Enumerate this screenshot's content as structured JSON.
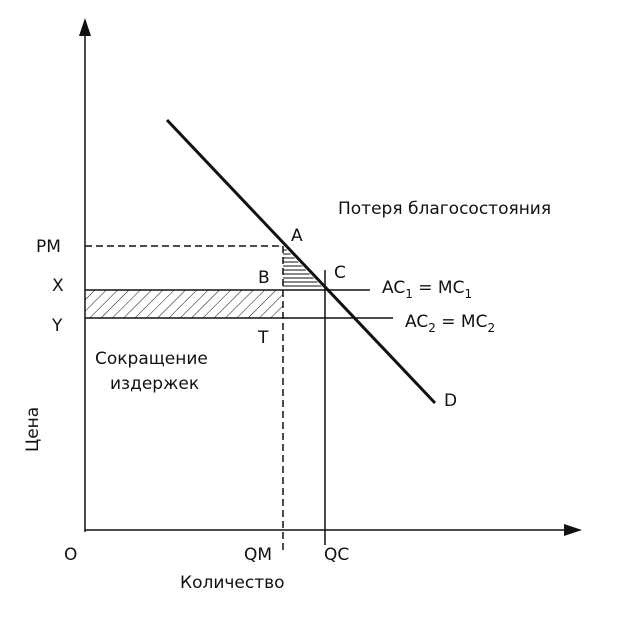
{
  "diagram": {
    "welfare_loss": "Потеря благосостояния",
    "price_labels": {
      "pm": "PM",
      "x": "X",
      "y": "Y"
    },
    "points": {
      "a": "A",
      "b": "B",
      "c": "C",
      "t": "T",
      "d": "D"
    },
    "ac1": {
      "parts": [
        "AC",
        "1",
        " = MC",
        "1"
      ]
    },
    "ac2": {
      "parts": [
        "AC",
        "2",
        " = MC",
        "2"
      ]
    },
    "cost_reduction": [
      "Сокращение",
      "издержек"
    ],
    "y_axis_label": "Цена",
    "x_axis_label": "Количество",
    "origin": "O",
    "qm": "QM",
    "qc": "QC"
  }
}
